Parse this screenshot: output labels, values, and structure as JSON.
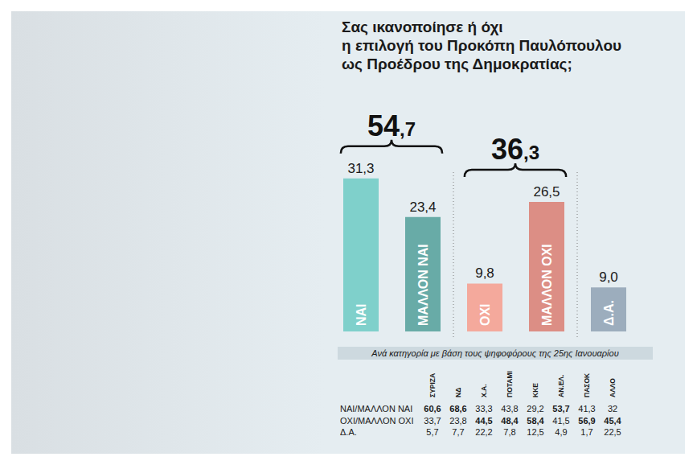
{
  "chart_data": {
    "type": "bar",
    "title": "Σας ικανοποίησε ή όχι\nη επιλογή του Προκόπη Παυλόπουλου\nως Προέδρου της Δημοκρατίας;",
    "categories": [
      "ΝΑΙ",
      "ΜΑΛΛΟΝ ΝΑΙ",
      "ΟΧΙ",
      "ΜΑΛΛΟΝ ΟΧΙ",
      "Δ.Α."
    ],
    "values": [
      31.3,
      23.4,
      9.8,
      26.5,
      9.0
    ],
    "value_labels": [
      "31,3",
      "23,4",
      "9,8",
      "26,5",
      "9,0"
    ],
    "colors": [
      "#7fd0cb",
      "#68aba7",
      "#f4a99c",
      "#dc8e85",
      "#9cadbd"
    ],
    "ylim": [
      0,
      40
    ],
    "tick_labels": false,
    "data_labels": true,
    "grid": false,
    "annotations": [
      {
        "label": "54,7",
        "value": 54.7,
        "categories": [
          "ΝΑΙ",
          "ΜΑΛΛΟΝ ΝΑΙ"
        ]
      },
      {
        "label": "36,3",
        "value": 36.3,
        "categories": [
          "ΟΧΙ",
          "ΜΑΛΛΟΝ ΟΧΙ"
        ]
      }
    ],
    "table": {
      "title": "Ανά κατηγορία με βάση τους ψηφοφόρους της 25ης Ιανουαρίου",
      "columns": [
        "ΣΥΡΙΖΑ",
        "ΝΔ",
        "Χ.Α.",
        "ΠΟΤΑΜΙ",
        "ΚΚΕ",
        "ΑΝ.ΕΛ.",
        "ΠΑΣΟΚ",
        "ΑΛΛΟ"
      ],
      "rows": [
        {
          "label": "ΝΑΙ/ΜΑΛΛΟΝ ΝΑΙ",
          "values": [
            "60,6",
            "68,6",
            "33,3",
            "43,8",
            "29,2",
            "53,7",
            "41,3",
            "32"
          ]
        },
        {
          "label": "ΟΧΙ/ΜΑΛΛΟΝ ΟΧΙ",
          "values": [
            "33,7",
            "23,8",
            "44,5",
            "48,4",
            "58,4",
            "41,5",
            "56,9",
            "45,4"
          ]
        },
        {
          "label": "Δ.Α.",
          "values": [
            "5,7",
            "7,7",
            "22,2",
            "7,8",
            "12,5",
            "4,9",
            "1,7",
            "22,5"
          ]
        }
      ]
    }
  }
}
